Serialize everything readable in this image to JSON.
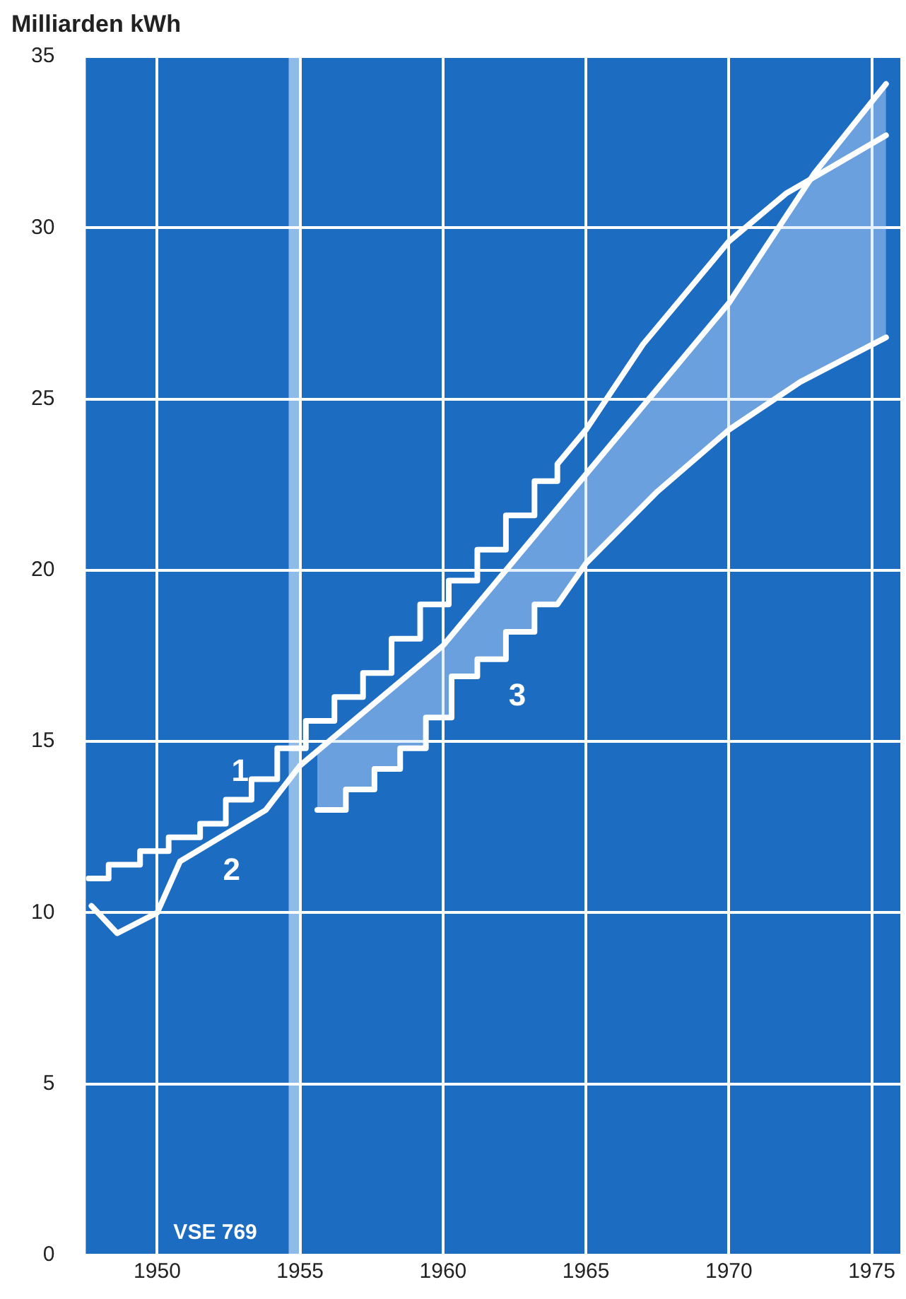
{
  "chart_data": {
    "type": "line",
    "ylabel": "Milliarden kWh",
    "xlim": [
      1947.5,
      1976
    ],
    "xticks": [
      1950,
      1955,
      1960,
      1965,
      1970,
      1975
    ],
    "ylim": [
      0,
      35
    ],
    "yticks": [
      0,
      5,
      10,
      15,
      20,
      25,
      30,
      35
    ],
    "grid": true,
    "legend": false,
    "marker": "none",
    "line_style": "solid",
    "bands": [
      {
        "axis": "x",
        "from": 1954.6,
        "to": 1955,
        "color": "#8fbbe8"
      }
    ],
    "annotations": [
      "VSE 769"
    ],
    "series": [
      {
        "name": "1",
        "color": "#ffffff",
        "x": [
          1947.6,
          1948.3,
          1948.3,
          1949.4,
          1949.4,
          1950.4,
          1950.4,
          1951.5,
          1951.5,
          1952.4,
          1952.4,
          1953.3,
          1953.3,
          1954.2,
          1954.2,
          1955.2,
          1955.2,
          1956.2,
          1956.2,
          1957.2,
          1957.2,
          1958.2,
          1958.2,
          1959.2,
          1959.2,
          1960.2,
          1960.2,
          1961.2,
          1961.2,
          1962.2,
          1962.2,
          1963.2,
          1963.2,
          1964,
          1964,
          1965,
          1967,
          1970,
          1972,
          1975.5
        ],
        "values": [
          11.0,
          11.0,
          11.4,
          11.4,
          11.8,
          11.8,
          12.2,
          12.2,
          12.6,
          12.6,
          13.3,
          13.3,
          13.9,
          13.9,
          14.8,
          14.8,
          15.6,
          15.6,
          16.3,
          16.3,
          17.0,
          17.0,
          18.0,
          18.0,
          19.0,
          19.0,
          19.7,
          19.7,
          20.6,
          20.6,
          21.6,
          21.6,
          22.6,
          22.6,
          23.1,
          24.1,
          26.6,
          29.6,
          31.0,
          32.7
        ]
      },
      {
        "name": "2",
        "color": "#ffffff",
        "x": [
          1947.7,
          1948.6,
          1950,
          1950.8,
          1953.8,
          1955,
          1960,
          1965,
          1970,
          1973,
          1975.5
        ],
        "values": [
          10.2,
          9.4,
          10.0,
          11.5,
          13.0,
          14.3,
          17.8,
          22.8,
          27.8,
          31.6,
          34.2
        ]
      },
      {
        "name": "3",
        "color": "#ffffff",
        "x": [
          1955.6,
          1956.6,
          1956.6,
          1957.6,
          1957.6,
          1958.5,
          1958.5,
          1959.4,
          1959.4,
          1960.3,
          1960.3,
          1961.2,
          1961.2,
          1962.2,
          1962.2,
          1963.2,
          1963.2,
          1964,
          1965,
          1967.5,
          1970,
          1972.5,
          1975.5
        ],
        "values": [
          13.0,
          13.0,
          13.6,
          13.6,
          14.2,
          14.2,
          14.8,
          14.8,
          15.7,
          15.7,
          16.9,
          16.9,
          17.4,
          17.4,
          18.2,
          18.2,
          19.0,
          19.0,
          20.2,
          22.3,
          24.1,
          25.5,
          26.8
        ],
        "lower": [
          13.0,
          13.0,
          13.6,
          13.6,
          14.2,
          14.2,
          14.8,
          14.8,
          15.7,
          15.7,
          16.9,
          16.9,
          17.4,
          17.4,
          18.2,
          18.2,
          19.0,
          19.0,
          20.2,
          22.3,
          24.1,
          25.5,
          26.8
        ],
        "upper": [
          14.7,
          15.4,
          15.4,
          16.1,
          16.1,
          16.8,
          16.8,
          17.4,
          17.4,
          18.1,
          18.1,
          19.0,
          19.0,
          20.0,
          20.0,
          21.0,
          21.0,
          21.8,
          22.8,
          25.3,
          27.8,
          31.0,
          34.2
        ]
      }
    ]
  }
}
